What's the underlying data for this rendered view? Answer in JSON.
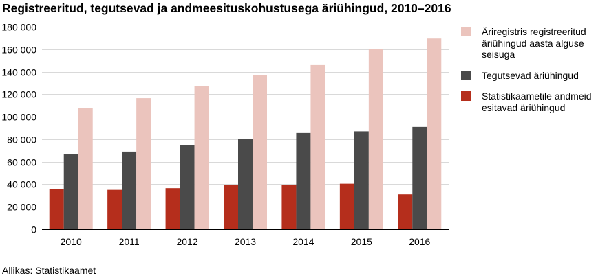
{
  "chart_data": {
    "type": "bar",
    "title": "Registreeritud, tegutsevad ja andmeesituskohustusega äriühingud, 2010–2016",
    "source": "Allikas: Statistikaamet",
    "categories": [
      "2010",
      "2011",
      "2012",
      "2013",
      "2014",
      "2015",
      "2016"
    ],
    "series": [
      {
        "name": "Statistikaametile andmeid esitavad äriühingud",
        "color": "#b52e1c",
        "values": [
          36000,
          35000,
          36500,
          39500,
          39500,
          40500,
          31000
        ]
      },
      {
        "name": "Tegutsevad äriühingud",
        "color": "#4a4a4a",
        "values": [
          66500,
          69000,
          74500,
          80500,
          85500,
          87000,
          91000
        ]
      },
      {
        "name": "Äriregistris registreeritud äriühingud aasta alguse seisuga",
        "color": "#ebc4bd",
        "values": [
          107500,
          116500,
          127000,
          137000,
          146500,
          160000,
          169500
        ]
      }
    ],
    "legend": {
      "position": "right",
      "order": [
        2,
        1,
        0
      ]
    },
    "ylim": [
      0,
      180000
    ],
    "yticks": [
      0,
      20000,
      40000,
      60000,
      80000,
      100000,
      120000,
      140000,
      160000,
      180000
    ],
    "ytick_labels": [
      "0",
      "20 000",
      "40 000",
      "60 000",
      "80 000",
      "100 000",
      "120 000",
      "140 000",
      "160 000",
      "180 000"
    ],
    "grid": true,
    "xlabel": "",
    "ylabel": ""
  }
}
